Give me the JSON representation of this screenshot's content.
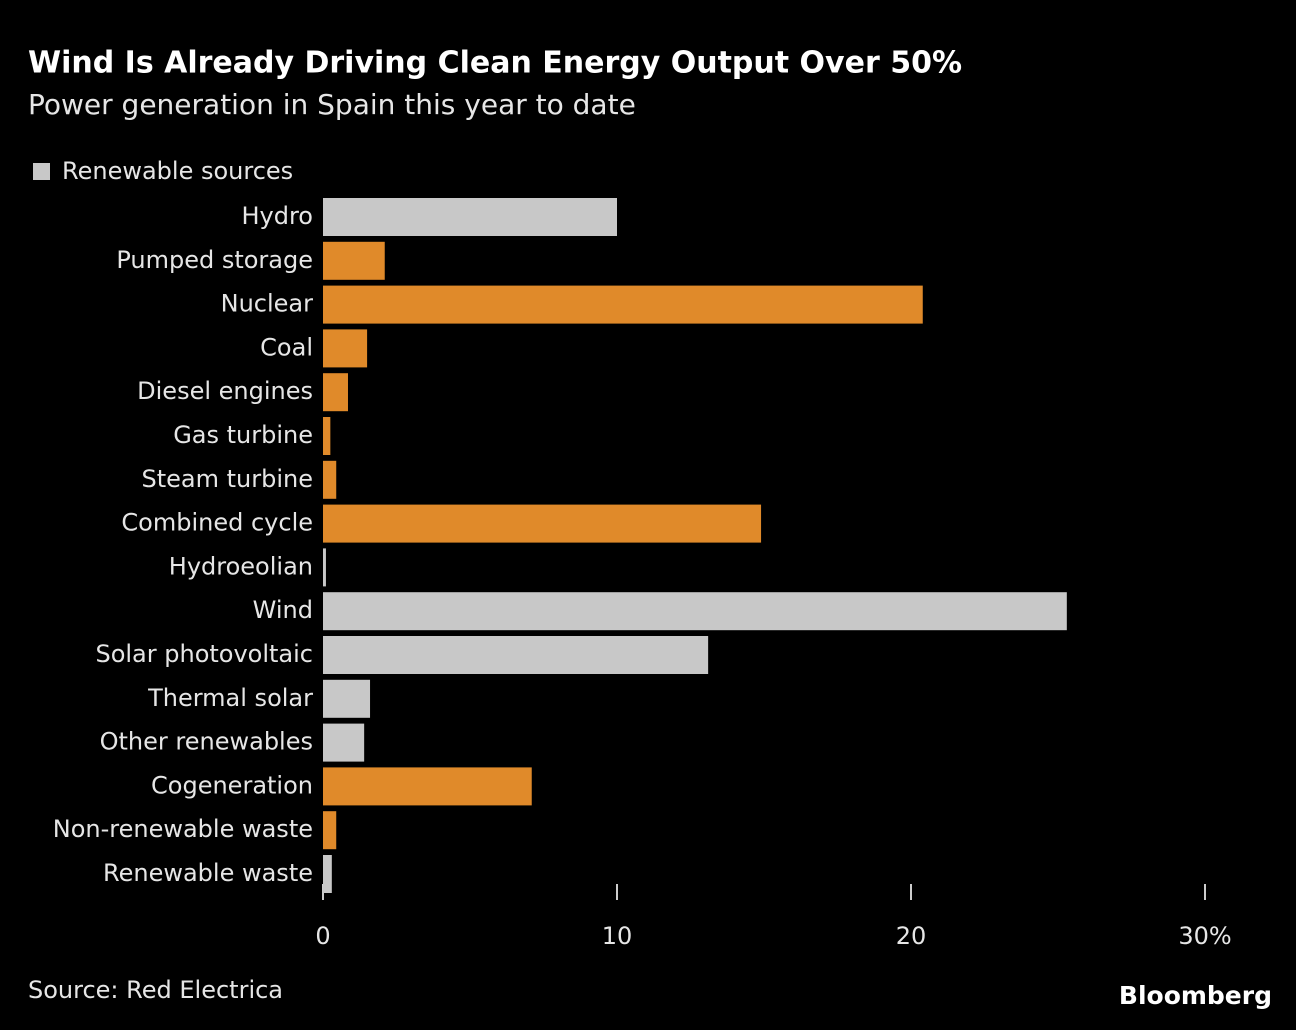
{
  "chart_data": {
    "type": "hbar",
    "title": "Wind Is Already Driving Clean Energy Output Over 50%",
    "subtitle": "Power generation in Spain this year to date",
    "legend": {
      "label": "Renewable sources",
      "color": "#c8c8c8"
    },
    "categories": [
      "Hydro",
      "Pumped storage",
      "Nuclear",
      "Coal",
      "Diesel engines",
      "Gas turbine",
      "Steam turbine",
      "Combined cycle",
      "Hydroeolian",
      "Wind",
      "Solar photovoltaic",
      "Thermal solar",
      "Other renewables",
      "Cogeneration",
      "Non-renewable waste",
      "Renewable waste"
    ],
    "values": [
      10.0,
      2.1,
      20.4,
      1.5,
      0.85,
      0.25,
      0.45,
      14.9,
      0.1,
      25.3,
      13.1,
      1.6,
      1.4,
      7.1,
      0.45,
      0.3
    ],
    "colors": [
      "#c8c8c8",
      "#e08a2a",
      "#e08a2a",
      "#e08a2a",
      "#e08a2a",
      "#e08a2a",
      "#e08a2a",
      "#e08a2a",
      "#c8c8c8",
      "#c8c8c8",
      "#c8c8c8",
      "#c8c8c8",
      "#c8c8c8",
      "#e08a2a",
      "#e08a2a",
      "#c8c8c8"
    ],
    "xlim": [
      0,
      30
    ],
    "xticks": [
      0,
      10,
      20,
      {
        "value": 30,
        "label": "30%"
      }
    ],
    "source": "Source: Red Electrica",
    "brand": "Bloomberg"
  }
}
